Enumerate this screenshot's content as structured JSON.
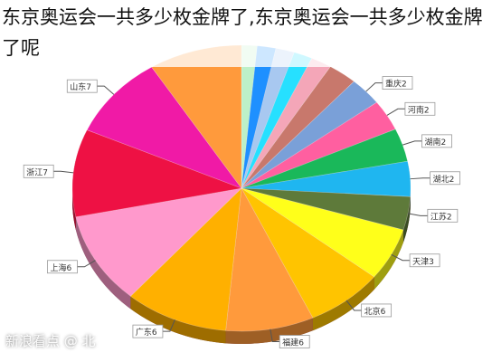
{
  "caption": "东京奥运会一共多少枚金牌了,东京奥运会一共多少枚金牌了呢",
  "watermark": "新浪看点 @ 北",
  "chart_data": {
    "type": "pie",
    "title": "",
    "legend": "none",
    "slices": [
      {
        "label": "",
        "value": 1.5,
        "color": "#bdf0c8"
      },
      {
        "label": "",
        "value": 1.8,
        "color": "#1e90ff"
      },
      {
        "label": "",
        "value": 1.8,
        "color": "#a8c8f0"
      },
      {
        "label": "",
        "value": 1.8,
        "color": "#26e0ff"
      },
      {
        "label": "",
        "value": 2.0,
        "color": "#f4a6b8"
      },
      {
        "label": "",
        "value": 2.8,
        "color": "#c8786c"
      },
      {
        "label": "重庆2",
        "value": 3.2,
        "color": "#7aa0d8"
      },
      {
        "label": "河南2",
        "value": 3.5,
        "color": "#ff5fa0"
      },
      {
        "label": "湖南2",
        "value": 3.8,
        "color": "#1ab85a"
      },
      {
        "label": "湖北2",
        "value": 4.0,
        "color": "#1fb6f0"
      },
      {
        "label": "江苏2",
        "value": 3.8,
        "color": "#5e7a3a"
      },
      {
        "label": "天津3",
        "value": 6.0,
        "color": "#ffff1a"
      },
      {
        "label": "北京6",
        "value": 7.5,
        "color": "#ffc400"
      },
      {
        "label": "福建6",
        "value": 8.5,
        "color": "#ff9a3c"
      },
      {
        "label": "广东6",
        "value": 10.0,
        "color": "#ffb000"
      },
      {
        "label": "上海6",
        "value": 10.5,
        "color": "#ff99cc"
      },
      {
        "label": "浙江7",
        "value": 10.0,
        "color": "#ee1144"
      },
      {
        "label": "山东7",
        "value": 9.5,
        "color": "#f01aa6"
      },
      {
        "label": "",
        "value": 9.0,
        "color": "#ff9a3c"
      }
    ]
  }
}
